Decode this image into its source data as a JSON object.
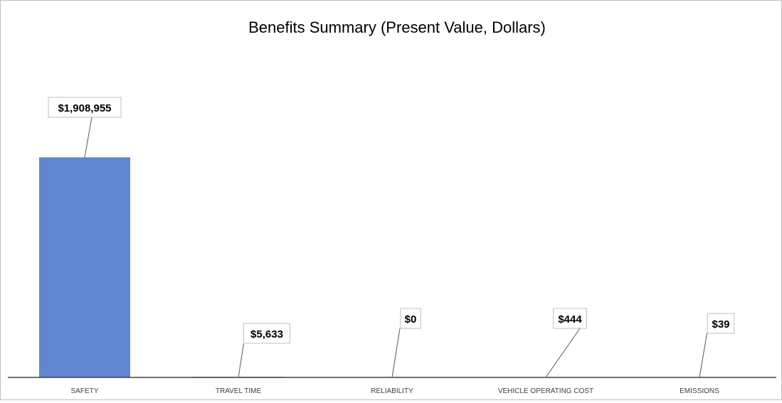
{
  "chart_data": {
    "type": "bar",
    "title": "Benefits Summary (Present Value, Dollars)",
    "categories": [
      "SAFETY",
      "TRAVEL TIME",
      "RELIABILITY",
      "VEHICLE OPERATING COST",
      "EMISSIONS"
    ],
    "values": [
      1908955,
      5633,
      0,
      444,
      39
    ],
    "data_labels": [
      "$1,908,955",
      "$5,633",
      "$0",
      "$444",
      "$39"
    ],
    "ylim": [
      0,
      2700000
    ],
    "grid": false,
    "legend": "none",
    "colors": {
      "bar": "#5f86cf",
      "axis": "#404040",
      "leader": "#595959",
      "label_border": "#bfbfbf"
    }
  }
}
